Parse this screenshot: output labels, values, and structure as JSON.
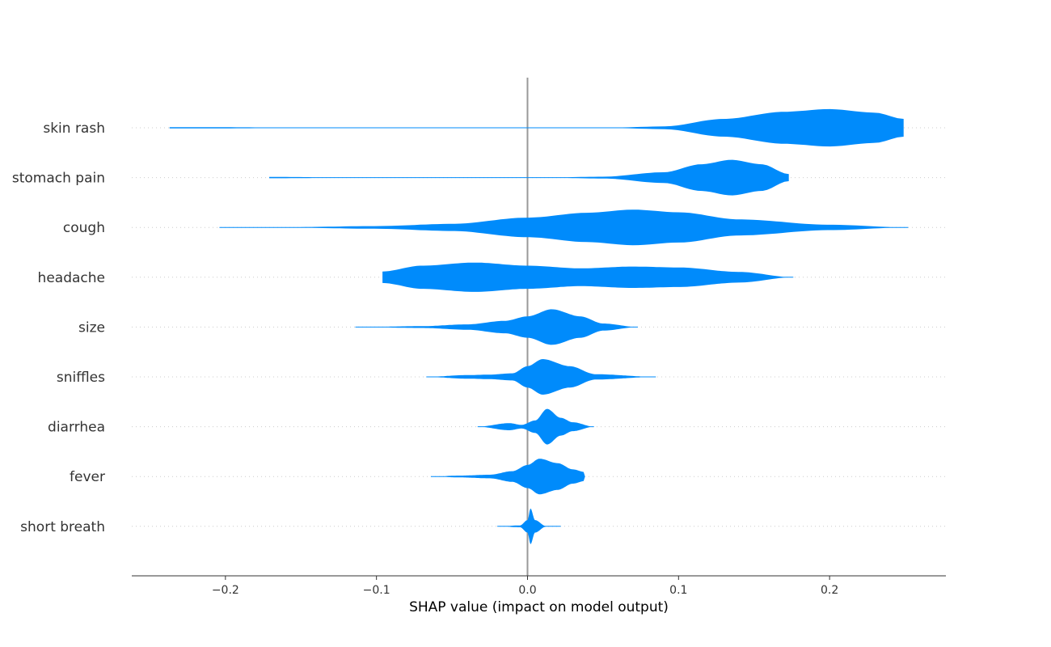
{
  "chart_data": {
    "type": "violin",
    "title": "",
    "xlabel": "SHAP value (impact on model output)",
    "ylabel": "",
    "xlim": [
      -0.262,
      0.277
    ],
    "xticks": [
      {
        "value": -0.2,
        "label": "−0.2"
      },
      {
        "value": -0.1,
        "label": "−0.1"
      },
      {
        "value": 0.0,
        "label": "0.0"
      },
      {
        "value": 0.1,
        "label": "0.1"
      },
      {
        "value": 0.2,
        "label": "0.2"
      }
    ],
    "grid": "dotted horizontal guides per feature",
    "color": "#008bfb",
    "features": [
      {
        "name": "skin rash",
        "min": -0.237,
        "max": 0.249,
        "profile": [
          [
            -0.237,
            0.015
          ],
          [
            -0.15,
            0.008
          ],
          [
            -0.12,
            0.0
          ],
          [
            0.05,
            0.0
          ],
          [
            0.09,
            0.03
          ],
          [
            0.13,
            0.2
          ],
          [
            0.17,
            0.36
          ],
          [
            0.2,
            0.42
          ],
          [
            0.23,
            0.34
          ],
          [
            0.249,
            0.2
          ]
        ]
      },
      {
        "name": "stomach pain",
        "min": -0.171,
        "max": 0.173,
        "profile": [
          [
            -0.171,
            0.015
          ],
          [
            -0.12,
            0.006
          ],
          [
            -0.1,
            0.0
          ],
          [
            0.005,
            0.0
          ],
          [
            0.05,
            0.02
          ],
          [
            0.09,
            0.12
          ],
          [
            0.115,
            0.3
          ],
          [
            0.135,
            0.4
          ],
          [
            0.155,
            0.3
          ],
          [
            0.173,
            0.08
          ]
        ]
      },
      {
        "name": "cough",
        "min": -0.204,
        "max": 0.252,
        "profile": [
          [
            -0.204,
            0.0
          ],
          [
            -0.15,
            0.01
          ],
          [
            -0.1,
            0.03
          ],
          [
            -0.05,
            0.08
          ],
          [
            0.0,
            0.22
          ],
          [
            0.04,
            0.33
          ],
          [
            0.07,
            0.4
          ],
          [
            0.1,
            0.34
          ],
          [
            0.14,
            0.18
          ],
          [
            0.2,
            0.06
          ],
          [
            0.252,
            0.0
          ]
        ]
      },
      {
        "name": "headache",
        "min": -0.096,
        "max": 0.176,
        "profile": [
          [
            -0.096,
            0.13
          ],
          [
            -0.07,
            0.26
          ],
          [
            -0.035,
            0.33
          ],
          [
            0.0,
            0.26
          ],
          [
            0.035,
            0.2
          ],
          [
            0.07,
            0.24
          ],
          [
            0.1,
            0.22
          ],
          [
            0.14,
            0.12
          ],
          [
            0.176,
            0.0
          ]
        ]
      },
      {
        "name": "size",
        "min": -0.114,
        "max": 0.073,
        "profile": [
          [
            -0.114,
            0.0
          ],
          [
            -0.07,
            0.02
          ],
          [
            -0.04,
            0.06
          ],
          [
            -0.015,
            0.14
          ],
          [
            0.0,
            0.24
          ],
          [
            0.016,
            0.4
          ],
          [
            0.035,
            0.24
          ],
          [
            0.05,
            0.08
          ],
          [
            0.073,
            0.0
          ]
        ]
      },
      {
        "name": "sniffles",
        "min": -0.067,
        "max": 0.085,
        "profile": [
          [
            -0.067,
            0.0
          ],
          [
            -0.04,
            0.04
          ],
          [
            -0.025,
            0.05
          ],
          [
            -0.01,
            0.08
          ],
          [
            0.0,
            0.24
          ],
          [
            0.01,
            0.4
          ],
          [
            0.028,
            0.24
          ],
          [
            0.045,
            0.06
          ],
          [
            0.085,
            0.0
          ]
        ]
      },
      {
        "name": "diarrhea",
        "min": -0.033,
        "max": 0.044,
        "profile": [
          [
            -0.033,
            0.0
          ],
          [
            -0.012,
            0.08
          ],
          [
            -0.004,
            0.04
          ],
          [
            0.005,
            0.14
          ],
          [
            0.013,
            0.4
          ],
          [
            0.022,
            0.2
          ],
          [
            0.03,
            0.1
          ],
          [
            0.044,
            0.0
          ]
        ]
      },
      {
        "name": "fever",
        "min": -0.064,
        "max": 0.038,
        "profile": [
          [
            -0.064,
            0.0
          ],
          [
            -0.045,
            0.02
          ],
          [
            -0.025,
            0.04
          ],
          [
            -0.01,
            0.12
          ],
          [
            0.0,
            0.26
          ],
          [
            0.008,
            0.4
          ],
          [
            0.02,
            0.3
          ],
          [
            0.03,
            0.16
          ],
          [
            0.038,
            0.1
          ]
        ]
      },
      {
        "name": "short breath",
        "min": -0.02,
        "max": 0.022,
        "profile": [
          [
            -0.02,
            0.0
          ],
          [
            -0.005,
            0.02
          ],
          [
            0.0,
            0.14
          ],
          [
            0.002,
            0.4
          ],
          [
            0.005,
            0.14
          ],
          [
            0.012,
            0.01
          ],
          [
            0.022,
            0.0
          ]
        ]
      }
    ]
  }
}
